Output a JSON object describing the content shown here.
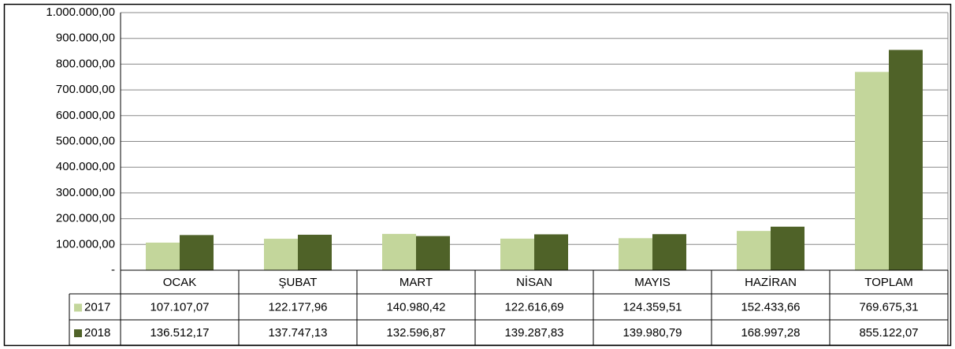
{
  "chart_data": {
    "type": "bar",
    "categories": [
      "OCAK",
      "ŞUBAT",
      "MART",
      "NİSAN",
      "MAYIS",
      "HAZİRAN",
      "TOPLAM"
    ],
    "series": [
      {
        "name": "2017",
        "color": "#c3d69b",
        "values": [
          107107.07,
          122177.96,
          140980.42,
          122616.69,
          124359.51,
          152433.66,
          769675.31
        ],
        "value_labels": [
          "107.107,07",
          "122.177,96",
          "140.980,42",
          "122.616,69",
          "124.359,51",
          "152.433,66",
          "769.675,31"
        ]
      },
      {
        "name": "2018",
        "color": "#4f6228",
        "values": [
          136512.17,
          137747.13,
          132596.87,
          139287.83,
          139980.79,
          168997.28,
          855122.07
        ],
        "value_labels": [
          "136.512,17",
          "137.747,13",
          "132.596,87",
          "139.287,83",
          "139.980,79",
          "168.997,28",
          "855.122,07"
        ]
      }
    ],
    "ylim": [
      0,
      1000000
    ],
    "yticks": [
      {
        "value": 0,
        "label": "-"
      },
      {
        "value": 100000,
        "label": "100.000,00"
      },
      {
        "value": 200000,
        "label": "200.000,00"
      },
      {
        "value": 300000,
        "label": "300.000,00"
      },
      {
        "value": 400000,
        "label": "400.000,00"
      },
      {
        "value": 500000,
        "label": "500.000,00"
      },
      {
        "value": 600000,
        "label": "600.000,00"
      },
      {
        "value": 700000,
        "label": "700.000,00"
      },
      {
        "value": 800000,
        "label": "800.000,00"
      },
      {
        "value": 900000,
        "label": "900.000,00"
      },
      {
        "value": 1000000,
        "label": "1.000.000,00"
      }
    ],
    "grid": true
  }
}
